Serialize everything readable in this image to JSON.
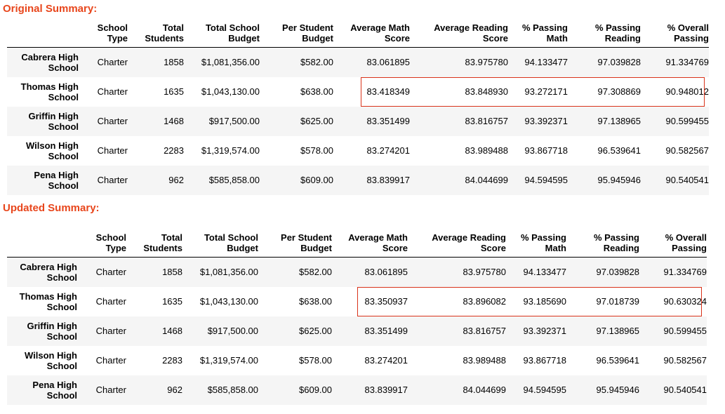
{
  "original": {
    "title": "Original Summary:",
    "columns": [
      [
        "School",
        "Type"
      ],
      [
        "Total",
        "Students"
      ],
      [
        "Total School",
        "Budget"
      ],
      [
        "Per Student",
        "Budget"
      ],
      [
        "Average Math",
        "Score"
      ],
      [
        "Average Reading",
        "Score"
      ],
      [
        "% Passing",
        "Math"
      ],
      [
        "% Passing",
        "Reading"
      ],
      [
        "% Overall",
        "Passing"
      ]
    ],
    "rows": [
      {
        "school": [
          "Cabrera High",
          "School"
        ],
        "type": "Charter",
        "students": "1858",
        "budget": "$1,081,356.00",
        "per_student": "$582.00",
        "math": "83.061895",
        "reading": "83.975780",
        "pass_math": "94.133477",
        "pass_reading": "97.039828",
        "overall": "91.334769"
      },
      {
        "school": [
          "Thomas High",
          "School"
        ],
        "type": "Charter",
        "students": "1635",
        "budget": "$1,043,130.00",
        "per_student": "$638.00",
        "math": "83.418349",
        "reading": "83.848930",
        "pass_math": "93.272171",
        "pass_reading": "97.308869",
        "overall": "90.948012"
      },
      {
        "school": [
          "Griffin High",
          "School"
        ],
        "type": "Charter",
        "students": "1468",
        "budget": "$917,500.00",
        "per_student": "$625.00",
        "math": "83.351499",
        "reading": "83.816757",
        "pass_math": "93.392371",
        "pass_reading": "97.138965",
        "overall": "90.599455"
      },
      {
        "school": [
          "Wilson High",
          "School"
        ],
        "type": "Charter",
        "students": "2283",
        "budget": "$1,319,574.00",
        "per_student": "$578.00",
        "math": "83.274201",
        "reading": "83.989488",
        "pass_math": "93.867718",
        "pass_reading": "96.539641",
        "overall": "90.582567"
      },
      {
        "school": [
          "Pena High",
          "School"
        ],
        "type": "Charter",
        "students": "962",
        "budget": "$585,858.00",
        "per_student": "$609.00",
        "math": "83.839917",
        "reading": "84.044699",
        "pass_math": "94.594595",
        "pass_reading": "95.945946",
        "overall": "90.540541"
      }
    ]
  },
  "updated": {
    "title": "Updated Summary:",
    "columns": [
      [
        "School",
        "Type"
      ],
      [
        "Total",
        "Students"
      ],
      [
        "Total School",
        "Budget"
      ],
      [
        "Per Student",
        "Budget"
      ],
      [
        "Average Math",
        "Score"
      ],
      [
        "Average Reading",
        "Score"
      ],
      [
        "% Passing",
        "Math"
      ],
      [
        "% Passing",
        "Reading"
      ],
      [
        "% Overall",
        "Passing"
      ]
    ],
    "rows": [
      {
        "school": [
          "Cabrera High",
          "School"
        ],
        "type": "Charter",
        "students": "1858",
        "budget": "$1,081,356.00",
        "per_student": "$582.00",
        "math": "83.061895",
        "reading": "83.975780",
        "pass_math": "94.133477",
        "pass_reading": "97.039828",
        "overall": "91.334769"
      },
      {
        "school": [
          "Thomas High",
          "School"
        ],
        "type": "Charter",
        "students": "1635",
        "budget": "$1,043,130.00",
        "per_student": "$638.00",
        "math": "83.350937",
        "reading": "83.896082",
        "pass_math": "93.185690",
        "pass_reading": "97.018739",
        "overall": "90.630324"
      },
      {
        "school": [
          "Griffin High",
          "School"
        ],
        "type": "Charter",
        "students": "1468",
        "budget": "$917,500.00",
        "per_student": "$625.00",
        "math": "83.351499",
        "reading": "83.816757",
        "pass_math": "93.392371",
        "pass_reading": "97.138965",
        "overall": "90.599455"
      },
      {
        "school": [
          "Wilson High",
          "School"
        ],
        "type": "Charter",
        "students": "2283",
        "budget": "$1,319,574.00",
        "per_student": "$578.00",
        "math": "83.274201",
        "reading": "83.989488",
        "pass_math": "93.867718",
        "pass_reading": "96.539641",
        "overall": "90.582567"
      },
      {
        "school": [
          "Pena High",
          "School"
        ],
        "type": "Charter",
        "students": "962",
        "budget": "$585,858.00",
        "per_student": "$609.00",
        "math": "83.839917",
        "reading": "84.044699",
        "pass_math": "94.594595",
        "pass_reading": "95.945946",
        "overall": "90.540541"
      }
    ]
  },
  "colors": {
    "title": "#e8461c",
    "highlight": "#d9331a",
    "stripe": "#f5f5f5"
  }
}
